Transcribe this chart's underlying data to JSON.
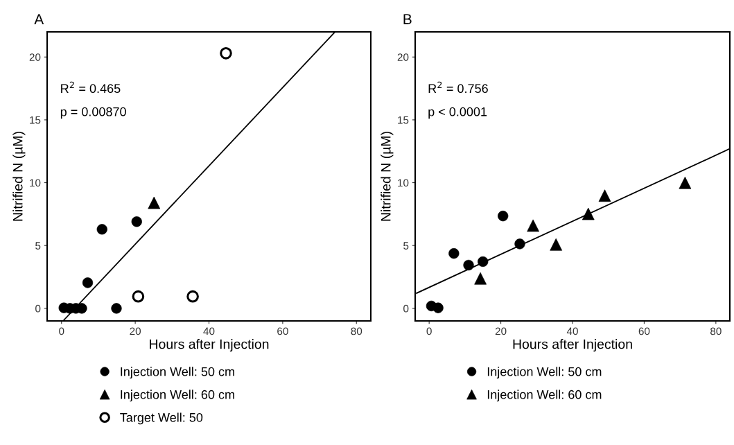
{
  "chart_data": [
    {
      "type": "scatter",
      "title": "A",
      "xlabel": "Hours after Injection",
      "ylabel": "Nitrified N (µM)",
      "xlim": [
        -3.9,
        83.9
      ],
      "ylim": [
        -1.0,
        22.0
      ],
      "xticks": [
        0,
        20,
        40,
        60,
        80
      ],
      "yticks": [
        0,
        5,
        10,
        15,
        20
      ],
      "legend": "bottom",
      "annotations": [
        "R$^{2}$ = 0.465",
        "p = 0.00870"
      ],
      "series": [
        {
          "name": "Injection Well: 50 cm",
          "color": "#000000",
          "marker": "circle",
          "x": [
            0.65,
            2.3,
            3.9,
            5.5,
            7.1,
            11.0,
            14.9,
            20.4
          ],
          "values": [
            0.04,
            0,
            0,
            0,
            2.04,
            6.29,
            0,
            6.9
          ]
        },
        {
          "name": "Injection Well: 60 cm",
          "color": "#000000",
          "marker": "triangle",
          "x": [
            25.1
          ],
          "values": [
            8.4
          ]
        },
        {
          "name": "Target Well: 50",
          "color": "#ffffff",
          "marker": "circle",
          "x": [
            20.8,
            35.6,
            44.6
          ],
          "values": [
            0.95,
            0.95,
            20.3
          ]
        },
        {
          "type": "line",
          "color": "#000000",
          "marker": "none",
          "x": [
            0.42,
            74.2
          ],
          "values": [
            -1.0,
            22.0
          ]
        }
      ]
    },
    {
      "type": "scatter",
      "title": "B",
      "xlabel": "Hours after Injection",
      "ylabel": "Nitrified N (µM)",
      "xlim": [
        -3.9,
        83.9
      ],
      "ylim": [
        -1.0,
        22.0
      ],
      "xticks": [
        0,
        20,
        40,
        60,
        80
      ],
      "yticks": [
        0,
        5,
        10,
        15,
        20
      ],
      "legend": "bottom",
      "annotations": [
        "R$^{2}$ = 0.756",
        "p < 0.0001"
      ],
      "series": [
        {
          "name": "Injection Well: 50 cm",
          "color": "#000000",
          "marker": "circle",
          "x": [
            0.63,
            2.5,
            6.9,
            11.0,
            15.0,
            20.6,
            25.3
          ],
          "values": [
            0.19,
            0.04,
            4.37,
            3.44,
            3.72,
            7.35,
            5.13
          ]
        },
        {
          "name": "Injection Well: 60 cm",
          "color": "#000000",
          "marker": "triangle",
          "x": [
            14.3,
            29.0,
            35.4,
            44.4,
            49.0,
            71.4
          ],
          "values": [
            2.38,
            6.59,
            5.08,
            7.52,
            8.97,
            9.99
          ]
        },
        {
          "type": "line",
          "color": "#000000",
          "marker": "none",
          "x": [
            -3.5,
            83.9
          ],
          "values": [
            1.21,
            12.7
          ]
        }
      ]
    }
  ]
}
